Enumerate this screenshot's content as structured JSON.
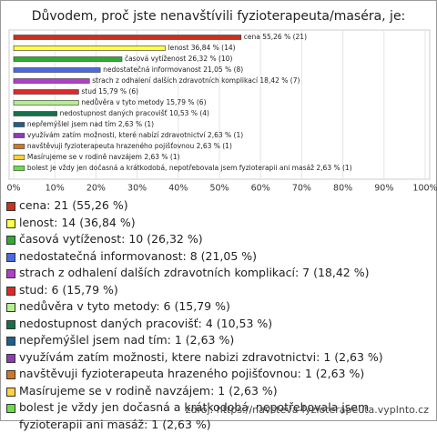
{
  "chart_data": {
    "type": "barh",
    "title": "Důvodem, proč jste nenavštívili fyzioterapeuta/maséra, je:",
    "categories": [
      "cena",
      "lenost",
      "časová vytíženost",
      "nedostatečná informovanost",
      "strach z odhalení dalších zdravotních komplikací",
      "stud",
      "nedůvěra v tyto metody",
      "nedostupnost daných pracovišť",
      "nepřemýšlel jsem nad tím",
      "využívám zatím možnosti, které nabízí zdravotnictví",
      "navštěvuji fyzioterapeuta hrazeného pojišťovnou",
      "Masírujeme se v rodině navzájem",
      "bolest je vždy jen dočasná a krátkodobá, nepotřebovala jsem fyzioterapii ani masáž"
    ],
    "values": [
      55.26,
      36.84,
      26.32,
      21.05,
      18.42,
      15.79,
      15.79,
      10.53,
      2.63,
      2.63,
      2.63,
      2.63,
      2.63
    ],
    "value_labels": [
      "cena 55,26 % (21)",
      "lenost 36,84 % (14)",
      "časová vytíženost 26,32 % (10)",
      "nedostatečná informovanost 21,05 % (8)",
      "strach z odhalení dalších zdravotních komplikací 18,42 % (7)",
      "stud 15,79 % (6)",
      "nedůvěra v tyto metody 15,79 % (6)",
      "nedostupnost daných pracovišť 10,53 % (4)",
      "nepřemýšlel jsem nad tím 2,63 % (1)",
      "využívám zatím možnosti, které nabízí zdravotnictví 2,63 % (1)",
      "navštěvuji fyzioterapeuta hrazeného pojišťovnou 2,63 % (1)",
      "Masírujeme se v rodině navzájem 2,63 % (1)",
      "bolest je vždy jen dočasná a krátkodobá, nepotřebovala jsem fyzioterapii ani masáž 2,63 % (1)"
    ],
    "legend_labels": [
      "cena: 21 (55,26 %)",
      "lenost: 14 (36,84 %)",
      "časová vytíženost: 10 (26,32 %)",
      "nedostatečná informovanost: 8 (21,05 %)",
      "strach z odhalení dalších zdravotních komplikací: 7 (18,42 %)",
      "stud: 6 (15,79 %)",
      "nedůvěra v tyto metody: 6 (15,79 %)",
      "nedostupnost daných pracovišť: 4 (10,53 %)",
      "nepřemýšlel jsem nad tím: 1 (2,63 %)",
      "využívám zatím možnosti, ktere nabizi zdravotnictvi: 1 (2,63 %)",
      "navštěvuji fyzioterapeuta hrazeného pojišťovnou: 1 (2,63 %)",
      "Masírujeme se v rodině navzájem: 1 (2,63 %)",
      "bolest je vždy jen dočasná a krátkodobá, nepotřebovala jsem fyzioterapii ani masáž: 1 (2,63 %)"
    ],
    "colors": [
      "#c8321e",
      "#ffff44",
      "#33aa33",
      "#4a6ae0",
      "#b040c8",
      "#e02828",
      "#b4f08c",
      "#17704a",
      "#1e5f8c",
      "#8c3cb4",
      "#d07828",
      "#ffd040",
      "#6ade44"
    ],
    "xlim": [
      0,
      100
    ],
    "xticks": [
      {
        "value": 0,
        "label": "0%"
      },
      {
        "value": 10,
        "label": "10%"
      },
      {
        "value": 20,
        "label": "20%"
      },
      {
        "value": 30,
        "label": "30%"
      },
      {
        "value": 40,
        "label": "40%"
      },
      {
        "value": 50,
        "label": "50%"
      },
      {
        "value": 60,
        "label": "60%"
      },
      {
        "value": 70,
        "label": "70%"
      },
      {
        "value": 80,
        "label": "80%"
      },
      {
        "value": 90,
        "label": "90%"
      },
      {
        "value": 100,
        "label": "100%"
      }
    ],
    "grid": true,
    "source": "zdroj: https://navsteva-fyzioterapeuta.vyplnto.cz"
  }
}
